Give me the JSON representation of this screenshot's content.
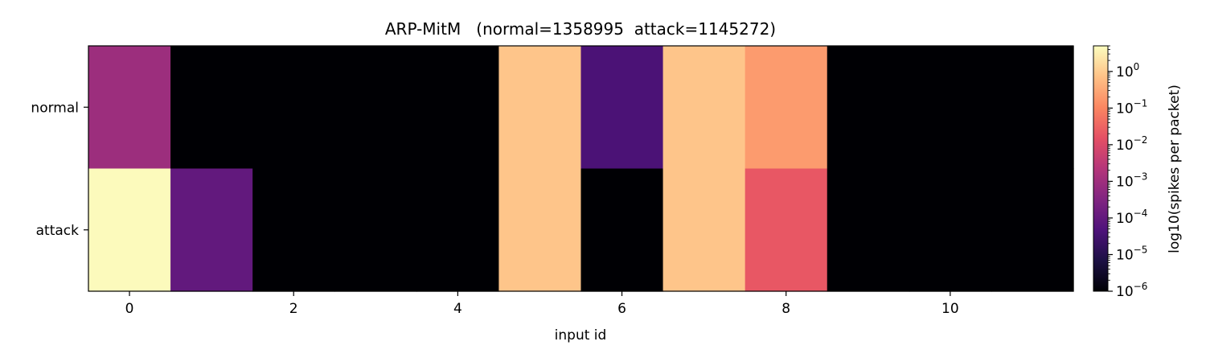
{
  "chart_data": {
    "type": "heatmap",
    "title": "ARP-MitM   (normal=1358995  attack=1145272)",
    "xlabel": "input id",
    "ylabel": "",
    "rows": [
      "normal",
      "attack"
    ],
    "columns": [
      0,
      1,
      2,
      3,
      4,
      5,
      6,
      7,
      8,
      9,
      10,
      11
    ],
    "xticks": [
      "0",
      "2",
      "4",
      "6",
      "8",
      "10"
    ],
    "xtick_values": [
      0,
      2,
      4,
      6,
      8,
      10
    ],
    "values": [
      [
        0.0009,
        1e-06,
        1e-06,
        1e-06,
        1e-06,
        0.8,
        4e-05,
        0.8,
        0.2,
        1e-06,
        1e-06,
        1e-06
      ],
      [
        4.5,
        0.0001,
        1e-06,
        1e-06,
        1e-06,
        0.8,
        1e-06,
        0.8,
        0.02,
        1e-06,
        1e-06,
        1e-06
      ]
    ],
    "colorbar": {
      "label": "log10(spikes per packet)",
      "scale": "log",
      "range": [
        1e-06,
        5
      ],
      "colormap": "magma",
      "ticks": [
        {
          "value": 1e-06,
          "base": "10",
          "exp": "−6"
        },
        {
          "value": 1e-05,
          "base": "10",
          "exp": "−5"
        },
        {
          "value": 0.0001,
          "base": "10",
          "exp": "−4"
        },
        {
          "value": 0.001,
          "base": "10",
          "exp": "−3"
        },
        {
          "value": 0.01,
          "base": "10",
          "exp": "−2"
        },
        {
          "value": 0.1,
          "base": "10",
          "exp": "−1"
        },
        {
          "value": 1,
          "base": "10",
          "exp": "0"
        }
      ]
    }
  }
}
